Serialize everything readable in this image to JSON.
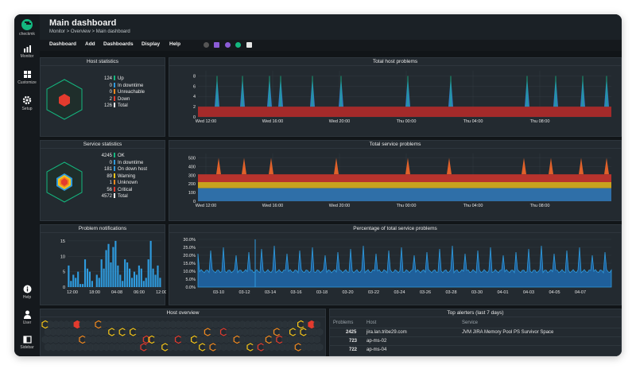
{
  "app": {
    "logo_text": "checkmk"
  },
  "sidebar": {
    "items": [
      {
        "label": "Monitor"
      },
      {
        "label": "Customize"
      },
      {
        "label": "Setup"
      }
    ],
    "bottom": [
      {
        "label": "Help"
      },
      {
        "label": "User"
      },
      {
        "label": "Sidebar"
      }
    ]
  },
  "header": {
    "title": "Main dashboard",
    "breadcrumb": "Monitor > Overview > Main dashboard"
  },
  "menu": {
    "items": [
      "Dashboard",
      "Add",
      "Dashboards",
      "Display",
      "Help"
    ]
  },
  "colors": {
    "ok": "#14b77f",
    "downtime": "#2f9bde",
    "unreachable": "#f28a1f",
    "down": "#e33b2e",
    "warning": "#f5c518",
    "unknown": "#f08a1f",
    "critical": "#e33b2e",
    "total": "#ffffff"
  },
  "host_stats": {
    "title": "Host statistics",
    "rows": [
      {
        "value": "124",
        "label": "Up",
        "color": "#14b77f"
      },
      {
        "value": "0",
        "label": "In downtime",
        "color": "#2f9bde"
      },
      {
        "value": "0",
        "label": "Unreachable",
        "color": "#f28a1f"
      },
      {
        "value": "2",
        "label": "Down",
        "color": "#e33b2e"
      },
      {
        "value": "126",
        "label": "Total",
        "color": "#ffffff"
      }
    ]
  },
  "service_stats": {
    "title": "Service statistics",
    "rows": [
      {
        "value": "4245",
        "label": "OK",
        "color": "#14b77f"
      },
      {
        "value": "0",
        "label": "In downtime",
        "color": "#2f9bde"
      },
      {
        "value": "181",
        "label": "On down host",
        "color": "#2f9bde"
      },
      {
        "value": "89",
        "label": "Warning",
        "color": "#f5c518"
      },
      {
        "value": "1",
        "label": "Unknown",
        "color": "#f08a1f"
      },
      {
        "value": "56",
        "label": "Critical",
        "color": "#e33b2e"
      },
      {
        "value": "4572",
        "label": "Total",
        "color": "#ffffff"
      }
    ]
  },
  "host_problems": {
    "title": "Total host problems"
  },
  "service_problems": {
    "title": "Total service problems"
  },
  "percentage": {
    "title": "Percentage of total service problems"
  },
  "notifications": {
    "title": "Problem notifications"
  },
  "host_overview": {
    "title": "Host overview"
  },
  "top_alerters": {
    "title": "Top alerters (last 7 days)",
    "columns": [
      "Problems",
      "Host",
      "Service"
    ],
    "rows": [
      {
        "problems": "2425",
        "host": "jira.lan.tribe29.com",
        "service": "JVM JIRA Memory Pool PS Survivor Space"
      },
      {
        "problems": "723",
        "host": "ap-ms-02",
        "service": ""
      },
      {
        "problems": "722",
        "host": "ap-ms-04",
        "service": ""
      }
    ]
  },
  "chart_data": [
    {
      "type": "area",
      "title": "Total host problems",
      "x_ticks": [
        "Wed 12:00",
        "Wed 16:00",
        "Wed 20:00",
        "Thu 00:00",
        "Thu 04:00",
        "Thu 08:00"
      ],
      "y_ticks": [
        0,
        2,
        4,
        6,
        8
      ],
      "ylim": [
        0,
        9
      ],
      "baseline": 2,
      "spike_value": 8
    },
    {
      "type": "area",
      "title": "Total service problems",
      "x_ticks": [
        "Wed 12:00",
        "Wed 16:00",
        "Wed 20:00",
        "Thu 00:00",
        "Thu 04:00",
        "Thu 08:00"
      ],
      "y_ticks": [
        0,
        100,
        200,
        300,
        400,
        500
      ],
      "ylim": [
        0,
        550
      ],
      "layers": [
        150,
        220,
        310
      ],
      "spike_value": 500
    },
    {
      "type": "bar",
      "title": "Problem notifications",
      "x_ticks": [
        "12:00",
        "18:00",
        "04-08",
        "06:00",
        "12:00"
      ],
      "y_ticks": [
        0,
        5,
        10,
        15
      ],
      "ylim": [
        0,
        16
      ],
      "values": [
        7,
        2,
        4,
        3,
        5,
        1,
        1,
        9,
        6,
        5,
        2,
        0,
        4,
        3,
        9,
        6,
        12,
        14,
        8,
        13,
        15,
        7,
        4,
        2,
        9,
        8,
        6,
        3,
        5,
        4,
        7,
        6,
        2,
        3,
        9,
        15,
        6,
        4,
        7,
        3
      ]
    },
    {
      "type": "area",
      "title": "Percentage of total service problems",
      "x_ticks": [
        "03-10",
        "03-12",
        "03-14",
        "03-16",
        "03-18",
        "03-20",
        "03-22",
        "03-24",
        "03-26",
        "03-28",
        "03-30",
        "04-01",
        "04-03",
        "04-05",
        "04-07"
      ],
      "y_ticks": [
        "0.0%",
        "5.0%",
        "10.0%",
        "15.0%",
        "20.0%",
        "25.0%",
        "30.0%"
      ],
      "ylim": [
        0,
        32
      ],
      "baseline": 10
    }
  ]
}
